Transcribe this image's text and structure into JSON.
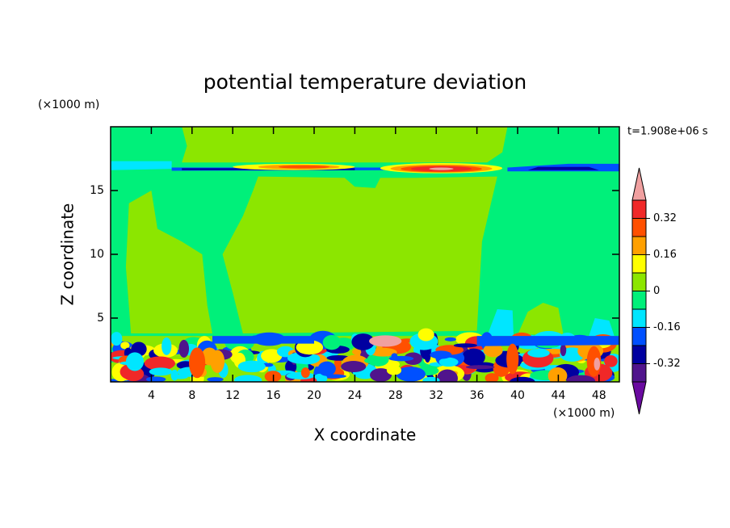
{
  "chart_data": {
    "type": "contour",
    "title": "potential temperature deviation",
    "xlabel": "X coordinate",
    "ylabel": "Z coordinate",
    "xunit": "(×1000 m)",
    "yunit": "(×1000 m)",
    "annotation": "t=1.908e+06 s",
    "xlim": [
      0,
      50
    ],
    "xticks": [
      4,
      8,
      12,
      16,
      20,
      24,
      28,
      32,
      36,
      40,
      44,
      48
    ],
    "ylim": [
      0,
      20
    ],
    "yticks": [
      5,
      10,
      15
    ],
    "colorbar": {
      "levels": [
        -0.4,
        -0.32,
        -0.24,
        -0.16,
        -0.08,
        0,
        0.08,
        0.16,
        0.24,
        0.32,
        0.4
      ],
      "colors": [
        "#50148c",
        "#0000a0",
        "#0050ff",
        "#00e6ff",
        "#00f07a",
        "#8ce600",
        "#ffff00",
        "#ffa000",
        "#ff5000",
        "#f02828"
      ],
      "under_color": "#6a0aa0",
      "over_color": "#f0a0a0",
      "ticks": [
        -0.32,
        -0.16,
        0,
        0.16,
        0.32
      ]
    }
  }
}
